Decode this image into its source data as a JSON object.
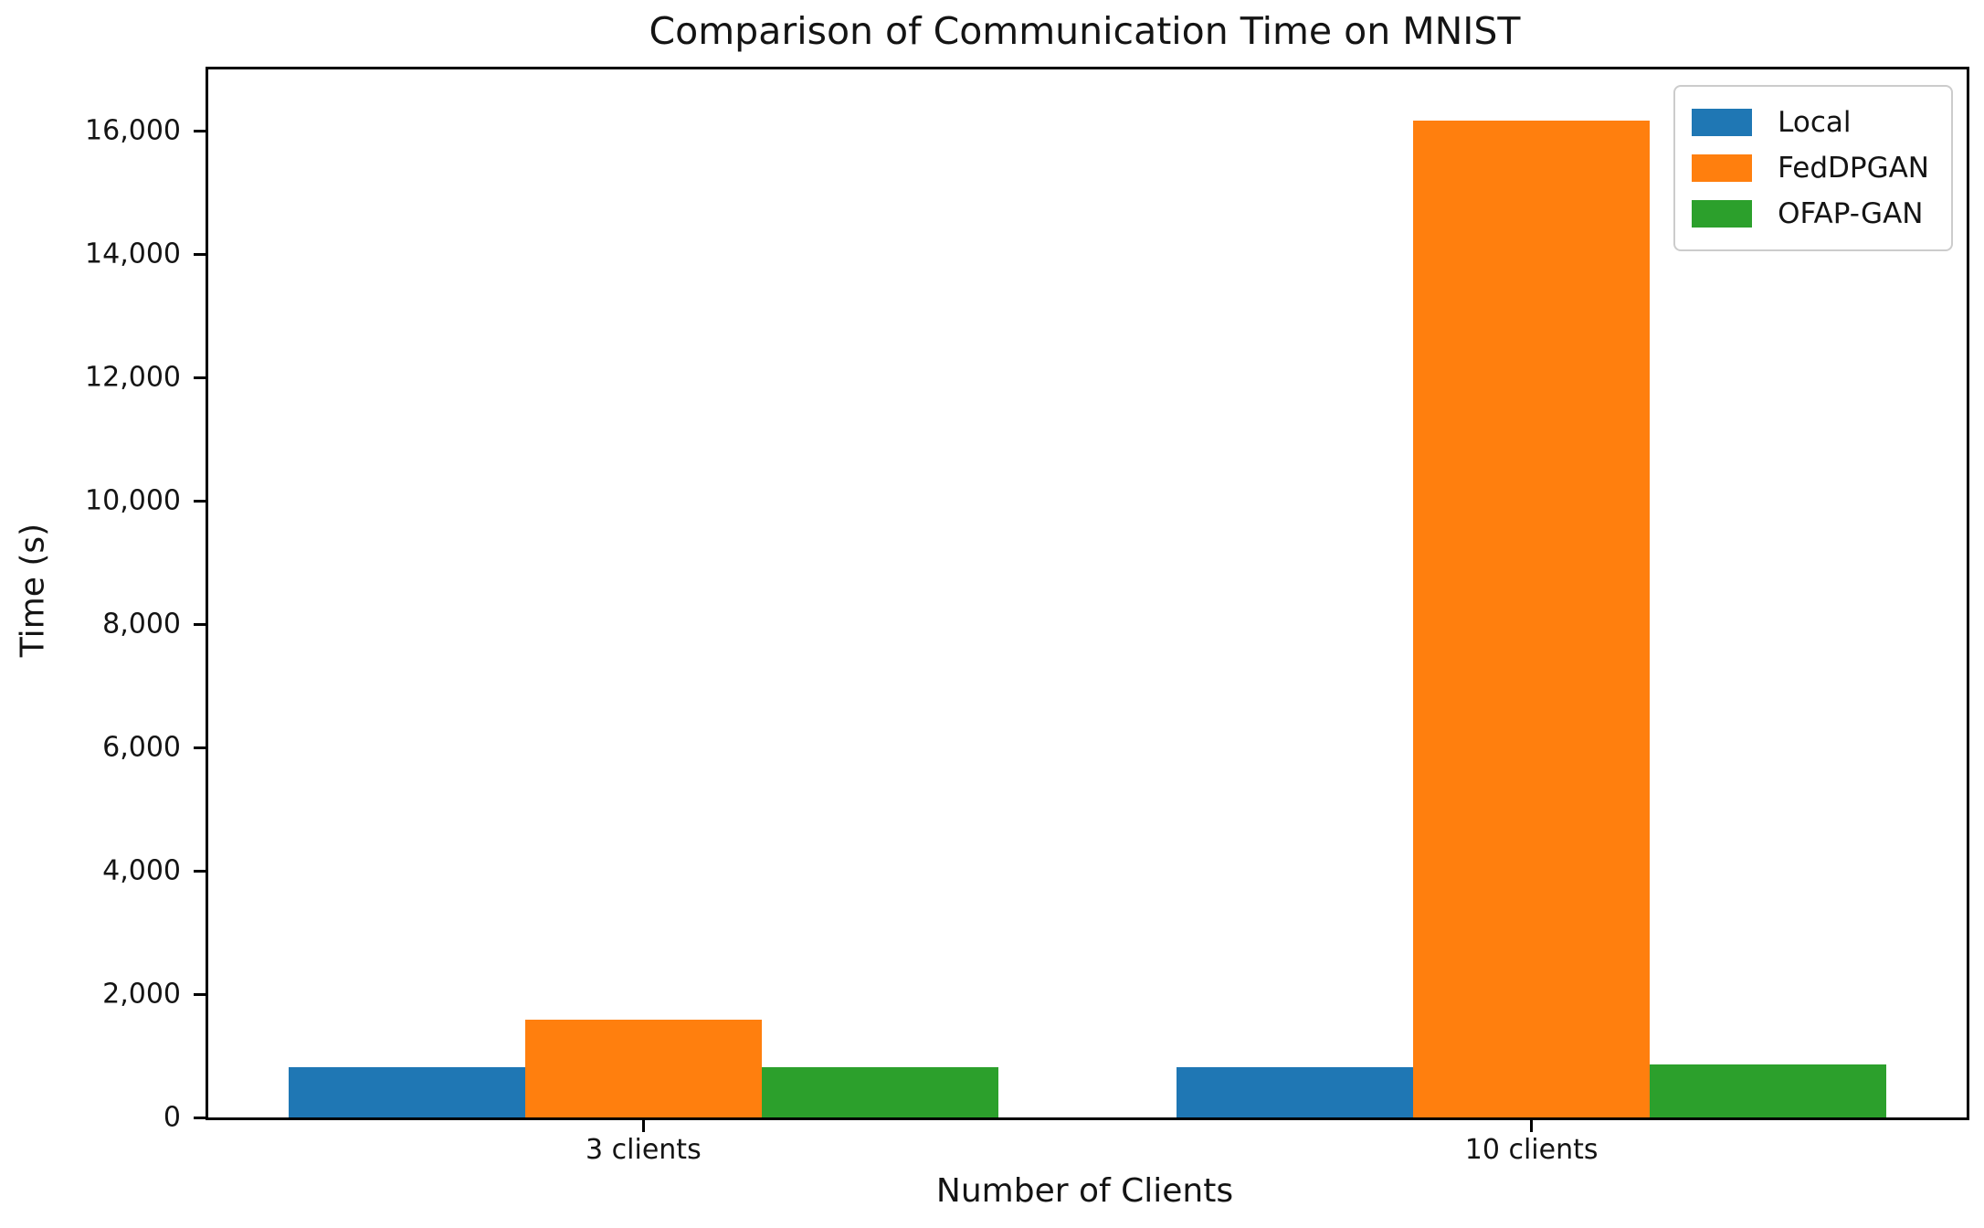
{
  "chart_data": {
    "type": "bar",
    "title": "Comparison of Communication Time on MNIST",
    "xlabel": "Number of Clients",
    "ylabel": "Time (s)",
    "categories": [
      "3 clients",
      "10 clients"
    ],
    "series": [
      {
        "name": "Local",
        "color": "#1f77b4",
        "values": [
          820,
          820
        ]
      },
      {
        "name": "FedDPGAN",
        "color": "#ff7f0e",
        "values": [
          1590,
          16170
        ]
      },
      {
        "name": "OFAP-GAN",
        "color": "#2ca02c",
        "values": [
          820,
          855
        ]
      }
    ],
    "ylim": [
      0,
      17000
    ],
    "yticks": [
      0,
      2000,
      4000,
      6000,
      8000,
      10000,
      12000,
      14000,
      16000
    ],
    "ytick_labels": [
      "0",
      "2,000",
      "4,000",
      "6,000",
      "8,000",
      "10,000",
      "12,000",
      "14,000",
      "16,000"
    ],
    "bar_group_width": 0.8,
    "grid": false,
    "legend_position": "upper right",
    "legend_entries": [
      "Local",
      "FedDPGAN",
      "OFAP-GAN"
    ]
  }
}
